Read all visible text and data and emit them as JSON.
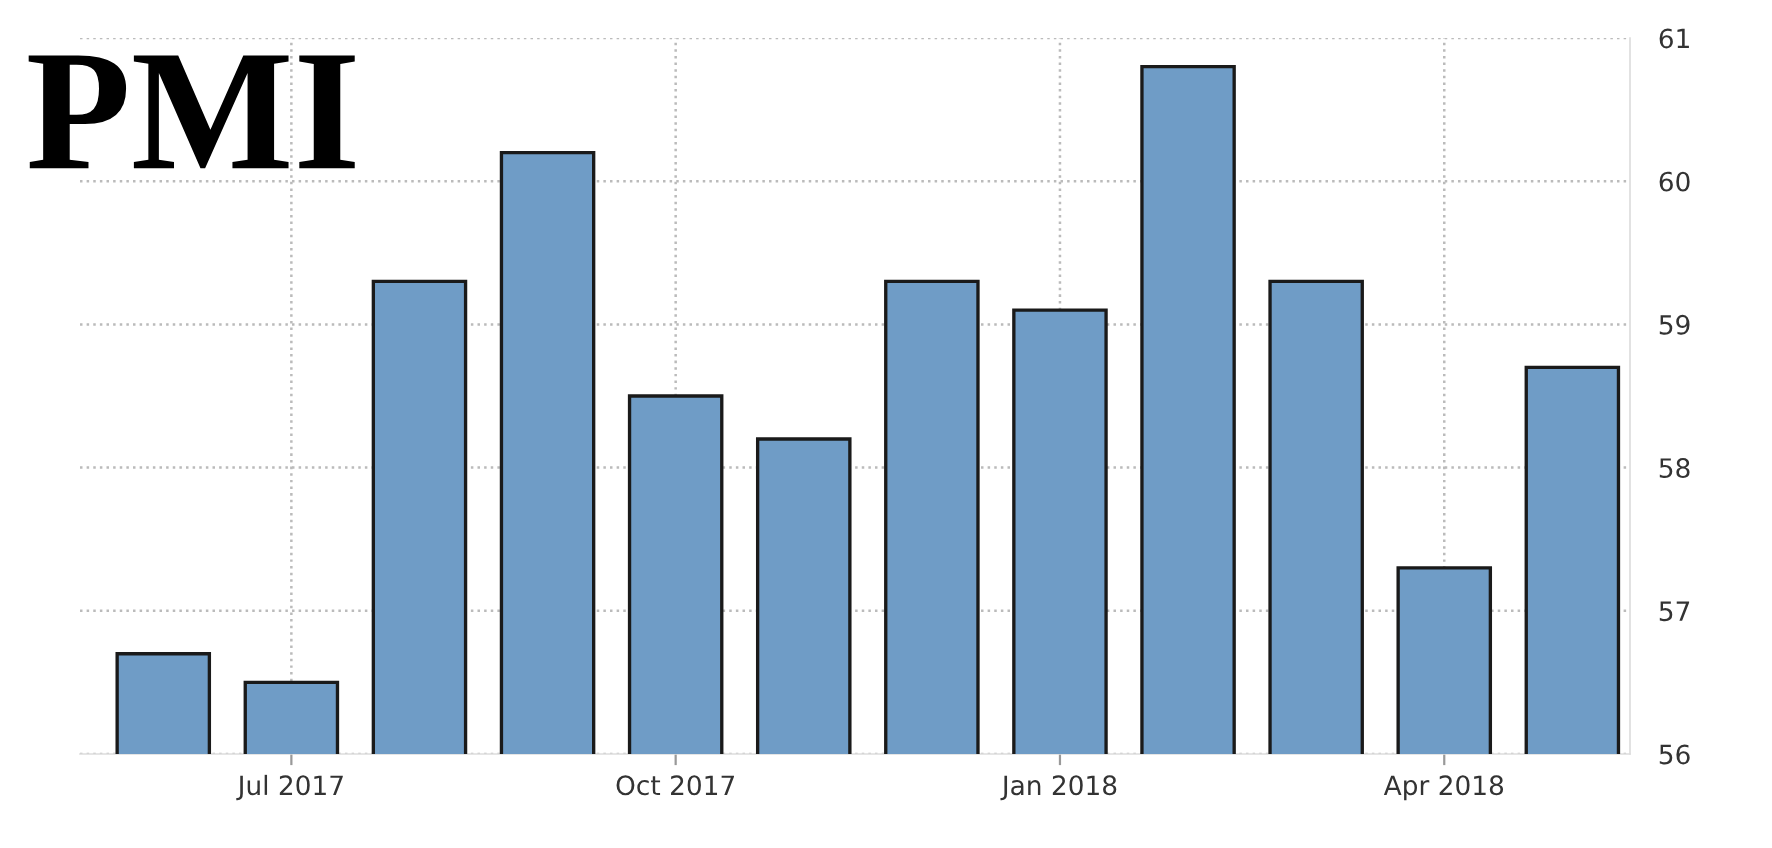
{
  "chart_data": {
    "type": "bar",
    "title": "PMI",
    "categories": [
      null,
      "Jul 2017",
      null,
      null,
      "Oct 2017",
      null,
      null,
      "Jan 2018",
      null,
      null,
      "Apr 2018",
      null
    ],
    "values": [
      56.7,
      56.5,
      59.3,
      60.2,
      58.5,
      58.2,
      59.3,
      59.1,
      60.8,
      59.3,
      57.3,
      58.7
    ],
    "color": "#6f9cc6",
    "ylim": [
      56,
      61
    ],
    "yticks": [
      56,
      57,
      58,
      59,
      60,
      61
    ],
    "grid": true
  }
}
